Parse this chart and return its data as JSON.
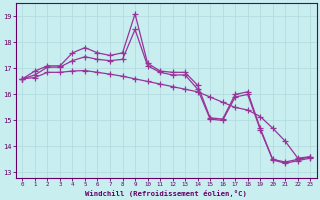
{
  "xlabel": "Windchill (Refroidissement éolien,°C)",
  "x_values": [
    0,
    1,
    2,
    3,
    4,
    5,
    6,
    7,
    8,
    9,
    10,
    11,
    12,
    13,
    14,
    15,
    16,
    17,
    18,
    19,
    20,
    21,
    22,
    23
  ],
  "series": [
    [
      16.6,
      16.9,
      17.1,
      17.1,
      17.6,
      17.8,
      17.6,
      17.5,
      17.6,
      19.1,
      17.2,
      16.9,
      16.85,
      16.85,
      16.35,
      15.1,
      15.05,
      16.0,
      16.1,
      14.7,
      13.5,
      13.4,
      13.5,
      13.6
    ],
    [
      16.6,
      16.75,
      17.05,
      17.05,
      17.3,
      17.45,
      17.35,
      17.3,
      17.35,
      18.5,
      17.1,
      16.85,
      16.75,
      16.75,
      16.2,
      15.05,
      15.0,
      15.9,
      16.0,
      14.65,
      13.48,
      13.35,
      13.45,
      13.55
    ],
    [
      16.6,
      16.65,
      16.85,
      16.85,
      16.9,
      16.92,
      16.85,
      16.78,
      16.7,
      16.6,
      16.5,
      16.4,
      16.3,
      16.2,
      16.1,
      15.9,
      15.7,
      15.5,
      15.4,
      15.15,
      14.7,
      14.2,
      13.55,
      13.6
    ]
  ],
  "line_color": "#993399",
  "marker": "+",
  "markersize": 4,
  "linewidth": 0.9,
  "ylim": [
    12.8,
    19.5
  ],
  "yticks": [
    13,
    14,
    15,
    16,
    17,
    18,
    19
  ],
  "xticks": [
    0,
    1,
    2,
    3,
    4,
    5,
    6,
    7,
    8,
    9,
    10,
    11,
    12,
    13,
    14,
    15,
    16,
    17,
    18,
    19,
    20,
    21,
    22,
    23
  ],
  "bg_color": "#c8eef0",
  "grid_color": "#b0d8da",
  "axis_color": "#660066",
  "label_color": "#660066",
  "tick_color": "#660066",
  "font": "monospace"
}
